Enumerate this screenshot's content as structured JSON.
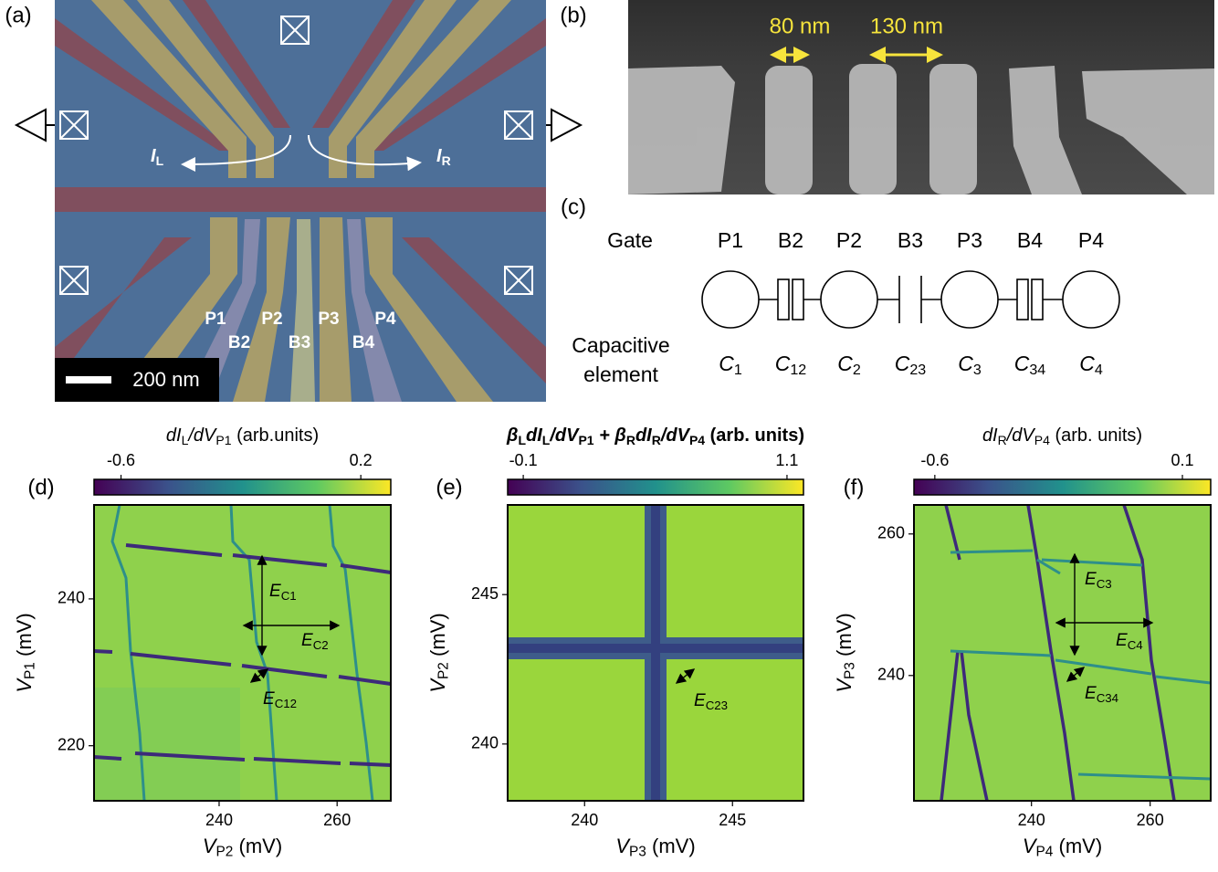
{
  "panels": [
    {
      "label": "(a)",
      "current_left": [
        "I",
        "L"
      ],
      "current_right": [
        "I",
        "R"
      ],
      "gate_labels_top": [
        "P1",
        "P2",
        "P3",
        "P4"
      ],
      "gate_labels_bottom": [
        "B2",
        "B3",
        "B4"
      ],
      "scale_bar": "200 nm"
    },
    {
      "label": "(b)",
      "dimensions": [
        "80 nm",
        "130 nm"
      ]
    },
    {
      "label": "(c)",
      "row_gate": "Gate",
      "row_capacitance": [
        "Capacitive",
        "element"
      ],
      "gates": [
        "P1",
        "B2",
        "P2",
        "B3",
        "P3",
        "B4",
        "P4"
      ],
      "capacitances": [
        [
          "C",
          "1"
        ],
        [
          "C",
          "12"
        ],
        [
          "C",
          "2"
        ],
        [
          "C",
          "23"
        ],
        [
          "C",
          "3"
        ],
        [
          "C",
          "34"
        ],
        [
          "C",
          "4"
        ]
      ]
    },
    {
      "label": "(d)",
      "colorbar": {
        "label": [
          "dI",
          "L",
          "/dV",
          "P1",
          " (arb.units)"
        ],
        "lim": [
          -0.69,
          0.3
        ],
        "ticks": [
          -0.6,
          0.2
        ]
      },
      "xlabel": [
        "V",
        "P2",
        " (mV)"
      ],
      "ylabel": [
        "V",
        "P1",
        " (mV)"
      ],
      "xlim": [
        218.8,
        269.1
      ],
      "xticks": [
        240,
        260
      ],
      "ylim": [
        212.5,
        252.8
      ],
      "yticks": [
        220,
        240
      ],
      "annotations": [
        [
          "E",
          "C1"
        ],
        [
          "E",
          "C2"
        ],
        [
          "E",
          "C12"
        ]
      ]
    },
    {
      "label": "(e)",
      "colorbar": {
        "label": [
          "β",
          "L",
          "dI",
          "L",
          "/dV",
          "P1",
          " + β",
          "R",
          "dI",
          "R",
          "/dV",
          "P4",
          " (arb. units)"
        ],
        "lim": [
          -0.171,
          1.175
        ],
        "ticks": [
          -0.1,
          1.1
        ]
      },
      "xlabel": [
        "V",
        "P3",
        " (mV)"
      ],
      "ylabel": [
        "V",
        "P2",
        " (mV)"
      ],
      "xlim": [
        237.4,
        247.4
      ],
      "xticks": [
        240,
        245
      ],
      "ylim": [
        238.1,
        248.0
      ],
      "yticks": [
        240,
        245
      ],
      "annotations": [
        [
          "E",
          "C23"
        ]
      ]
    },
    {
      "label": "(f)",
      "colorbar": {
        "label": [
          "dI",
          "R",
          "/dV",
          "P4",
          " (arb. units)"
        ],
        "lim": [
          -0.659,
          0.18
        ],
        "ticks": [
          -0.6,
          0.1
        ]
      },
      "xlabel": [
        "V",
        "P4",
        " (mV)"
      ],
      "ylabel": [
        "V",
        "P3",
        " (mV)"
      ],
      "xlim": [
        220.2,
        270.2
      ],
      "xticks": [
        240,
        260
      ],
      "ylim": [
        222.3,
        264.1
      ],
      "yticks": [
        240,
        260
      ],
      "annotations": [
        [
          "E",
          "C3"
        ],
        [
          "E",
          "C4"
        ],
        [
          "E",
          "C34"
        ]
      ]
    }
  ]
}
